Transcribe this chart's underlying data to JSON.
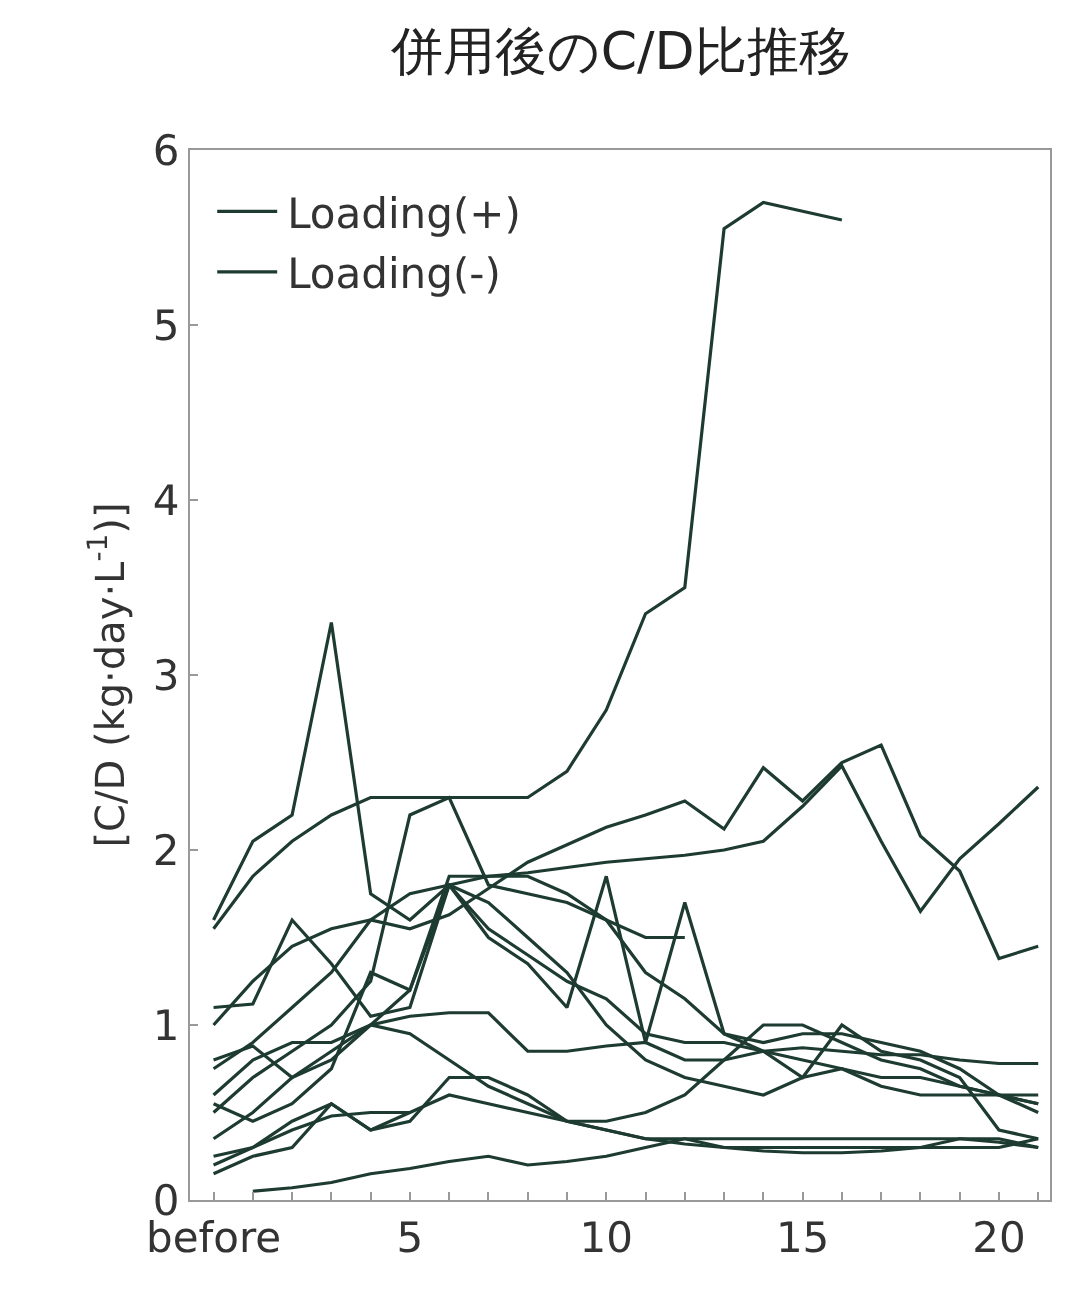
{
  "chart_data": {
    "type": "line",
    "title": "併用後のC/D比推移",
    "ylabel": "[C/D (kg·day·L$^{-1}$)]",
    "x": [
      0,
      1,
      2,
      3,
      4,
      5,
      6,
      7,
      8,
      9,
      10,
      11,
      12,
      13,
      14,
      15,
      16,
      17,
      18,
      19,
      20,
      21
    ],
    "xlim": [
      -0.6,
      21.3
    ],
    "xticks": [
      {
        "value": 0,
        "label": "before"
      },
      {
        "value": 1,
        "label": null
      },
      {
        "value": 2,
        "label": null
      },
      {
        "value": 3,
        "label": null
      },
      {
        "value": 4,
        "label": null
      },
      5,
      {
        "value": 6,
        "label": null
      },
      {
        "value": 7,
        "label": null
      },
      {
        "value": 8,
        "label": null
      },
      {
        "value": 9,
        "label": null
      },
      10,
      {
        "value": 11,
        "label": null
      },
      {
        "value": 12,
        "label": null
      },
      {
        "value": 13,
        "label": null
      },
      {
        "value": 14,
        "label": null
      },
      15,
      {
        "value": 16,
        "label": null
      },
      {
        "value": 17,
        "label": null
      },
      {
        "value": 18,
        "label": null
      },
      {
        "value": 19,
        "label": null
      },
      20,
      {
        "value": 21,
        "label": null
      }
    ],
    "ylim": [
      0,
      6
    ],
    "yticks": [
      0,
      1,
      2,
      3,
      4,
      5,
      6
    ],
    "legend": "top left",
    "marker": "none",
    "line_style": "solid",
    "series": [
      {
        "name": "Loading(+)",
        "color": "#1d3b31",
        "values": [
          1.55,
          1.85,
          2.05,
          2.2,
          2.3,
          2.3,
          2.3,
          2.3,
          2.3,
          2.45,
          2.8,
          3.35,
          3.5,
          5.55,
          5.7,
          5.65,
          5.6,
          null,
          null,
          null,
          null,
          null
        ]
      },
      {
        "name": "Loading(-)",
        "color": "#1d3b31",
        "values": [
          1.6,
          2.05,
          2.2,
          3.3,
          1.75,
          1.6,
          1.8,
          1.5,
          1.35,
          1.1,
          1.85,
          0.9,
          1.7,
          0.95,
          0.85,
          0.7,
          1.0,
          0.85,
          0.8,
          0.7,
          0.4,
          0.35
        ]
      },
      {
        "color": "#1d3b31",
        "values": [
          1.0,
          1.25,
          1.45,
          1.55,
          1.6,
          1.55,
          1.63,
          1.78,
          1.93,
          2.03,
          2.13,
          2.2,
          2.28,
          2.12,
          2.47,
          2.28,
          2.5,
          2.6,
          2.08,
          1.88,
          1.38,
          1.45
        ]
      },
      {
        "color": "#1d3b31",
        "values": [
          0.75,
          0.9,
          1.1,
          1.3,
          1.6,
          1.75,
          1.8,
          1.85,
          1.87,
          1.9,
          1.93,
          1.95,
          1.97,
          2.0,
          2.05,
          2.25,
          2.48,
          2.05,
          1.65,
          1.95,
          2.15,
          2.36
        ]
      },
      {
        "color": "#1d3b31",
        "values": [
          1.1,
          1.12,
          1.6,
          1.35,
          1.05,
          1.1,
          1.8,
          1.55,
          1.4,
          1.25,
          1.15,
          0.95,
          0.9,
          0.9,
          0.85,
          0.8,
          0.75,
          0.7,
          0.7,
          0.65,
          0.6,
          0.5
        ]
      },
      {
        "color": "#1d3b31",
        "values": [
          0.8,
          0.88,
          0.7,
          0.85,
          1.0,
          1.05,
          1.07,
          1.07,
          0.85,
          0.85,
          0.88,
          0.9,
          0.8,
          0.8,
          0.85,
          0.87,
          0.85,
          0.83,
          0.83,
          0.8,
          0.78,
          0.78
        ]
      },
      {
        "color": "#1d3b31",
        "values": [
          0.5,
          0.7,
          0.85,
          1.0,
          1.25,
          2.2,
          2.3,
          1.8,
          1.75,
          1.7,
          1.6,
          1.5,
          1.5,
          null,
          null,
          null,
          null,
          null,
          null,
          null,
          null,
          null
        ]
      },
      {
        "color": "#1d3b31",
        "values": [
          0.35,
          0.5,
          0.7,
          0.8,
          1.0,
          1.2,
          1.8,
          1.7,
          1.5,
          1.3,
          1.0,
          0.8,
          0.7,
          0.65,
          0.6,
          0.7,
          0.75,
          0.65,
          0.6,
          0.6,
          0.6,
          0.55
        ]
      },
      {
        "color": "#1d3b31",
        "values": [
          0.25,
          0.3,
          0.45,
          0.55,
          0.4,
          0.5,
          0.6,
          0.55,
          0.5,
          0.45,
          0.45,
          0.5,
          0.6,
          0.8,
          1.0,
          1.0,
          0.9,
          0.8,
          0.75,
          0.65,
          0.6,
          0.6
        ]
      },
      {
        "color": "#1d3b31",
        "values": [
          0.2,
          0.3,
          0.4,
          0.48,
          0.5,
          0.5,
          null,
          null,
          null,
          null,
          null,
          null,
          null,
          null,
          null,
          null,
          null,
          null,
          null,
          null,
          null,
          null
        ]
      },
      {
        "color": "#1d3b31",
        "values": [
          0.15,
          0.25,
          0.3,
          0.55,
          0.4,
          0.45,
          0.7,
          0.7,
          0.6,
          0.45,
          0.4,
          0.35,
          0.35,
          0.3,
          0.3,
          0.3,
          0.3,
          0.3,
          0.3,
          0.35,
          0.35,
          0.3
        ]
      },
      {
        "color": "#1d3b31",
        "values": [
          null,
          0.05,
          0.07,
          0.1,
          0.15,
          0.18,
          0.22,
          0.25,
          0.2,
          0.22,
          0.25,
          0.3,
          0.35,
          0.35,
          0.35,
          0.35,
          0.35,
          0.35,
          0.35,
          0.35,
          0.33,
          0.3
        ]
      },
      {
        "color": "#1d3b31",
        "values": [
          0.6,
          0.8,
          0.9,
          0.9,
          1.0,
          0.95,
          0.8,
          0.65,
          0.55,
          0.45,
          0.4,
          0.35,
          0.32,
          0.3,
          0.28,
          0.27,
          0.27,
          0.28,
          0.3,
          0.3,
          0.3,
          0.35
        ]
      },
      {
        "color": "#1d3b31",
        "values": [
          0.55,
          0.45,
          0.55,
          0.75,
          1.3,
          1.2,
          1.85,
          1.85,
          1.85,
          1.75,
          1.6,
          1.3,
          1.15,
          0.95,
          0.9,
          0.95,
          0.95,
          0.9,
          0.85,
          0.75,
          0.6,
          0.55
        ]
      }
    ]
  }
}
